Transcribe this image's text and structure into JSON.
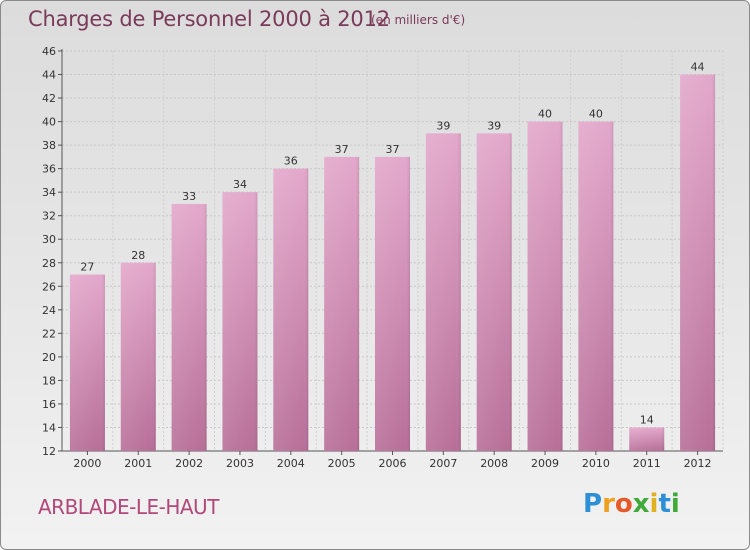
{
  "header": {
    "title": "Charges de Personnel 2000 à 2012",
    "subtitle": "(en milliers d'€)"
  },
  "footer": {
    "place": "ARBLADE-LE-HAUT",
    "logo": [
      "P",
      "r",
      "o",
      "x",
      "i",
      "t",
      "i"
    ]
  },
  "colors": {
    "bar_top": "#e3a8cb",
    "bar_bottom": "#b86f98",
    "text": "#7a3a5a",
    "place": "#b0487a"
  },
  "chart_data": {
    "type": "bar",
    "title": "Charges de Personnel 2000 à 2012",
    "subtitle": "(en milliers d'€)",
    "categories": [
      "2000",
      "2001",
      "2002",
      "2003",
      "2004",
      "2005",
      "2006",
      "2007",
      "2008",
      "2009",
      "2010",
      "2011",
      "2012"
    ],
    "values": [
      27,
      28,
      33,
      34,
      36,
      37,
      37,
      39,
      39,
      40,
      40,
      14,
      44
    ],
    "ylim": [
      12,
      46
    ],
    "yticks": [
      12,
      14,
      16,
      18,
      20,
      22,
      24,
      26,
      28,
      30,
      32,
      34,
      36,
      38,
      40,
      42,
      44,
      46
    ],
    "xlabel": "",
    "ylabel": "",
    "grid": true,
    "legend": "none"
  }
}
